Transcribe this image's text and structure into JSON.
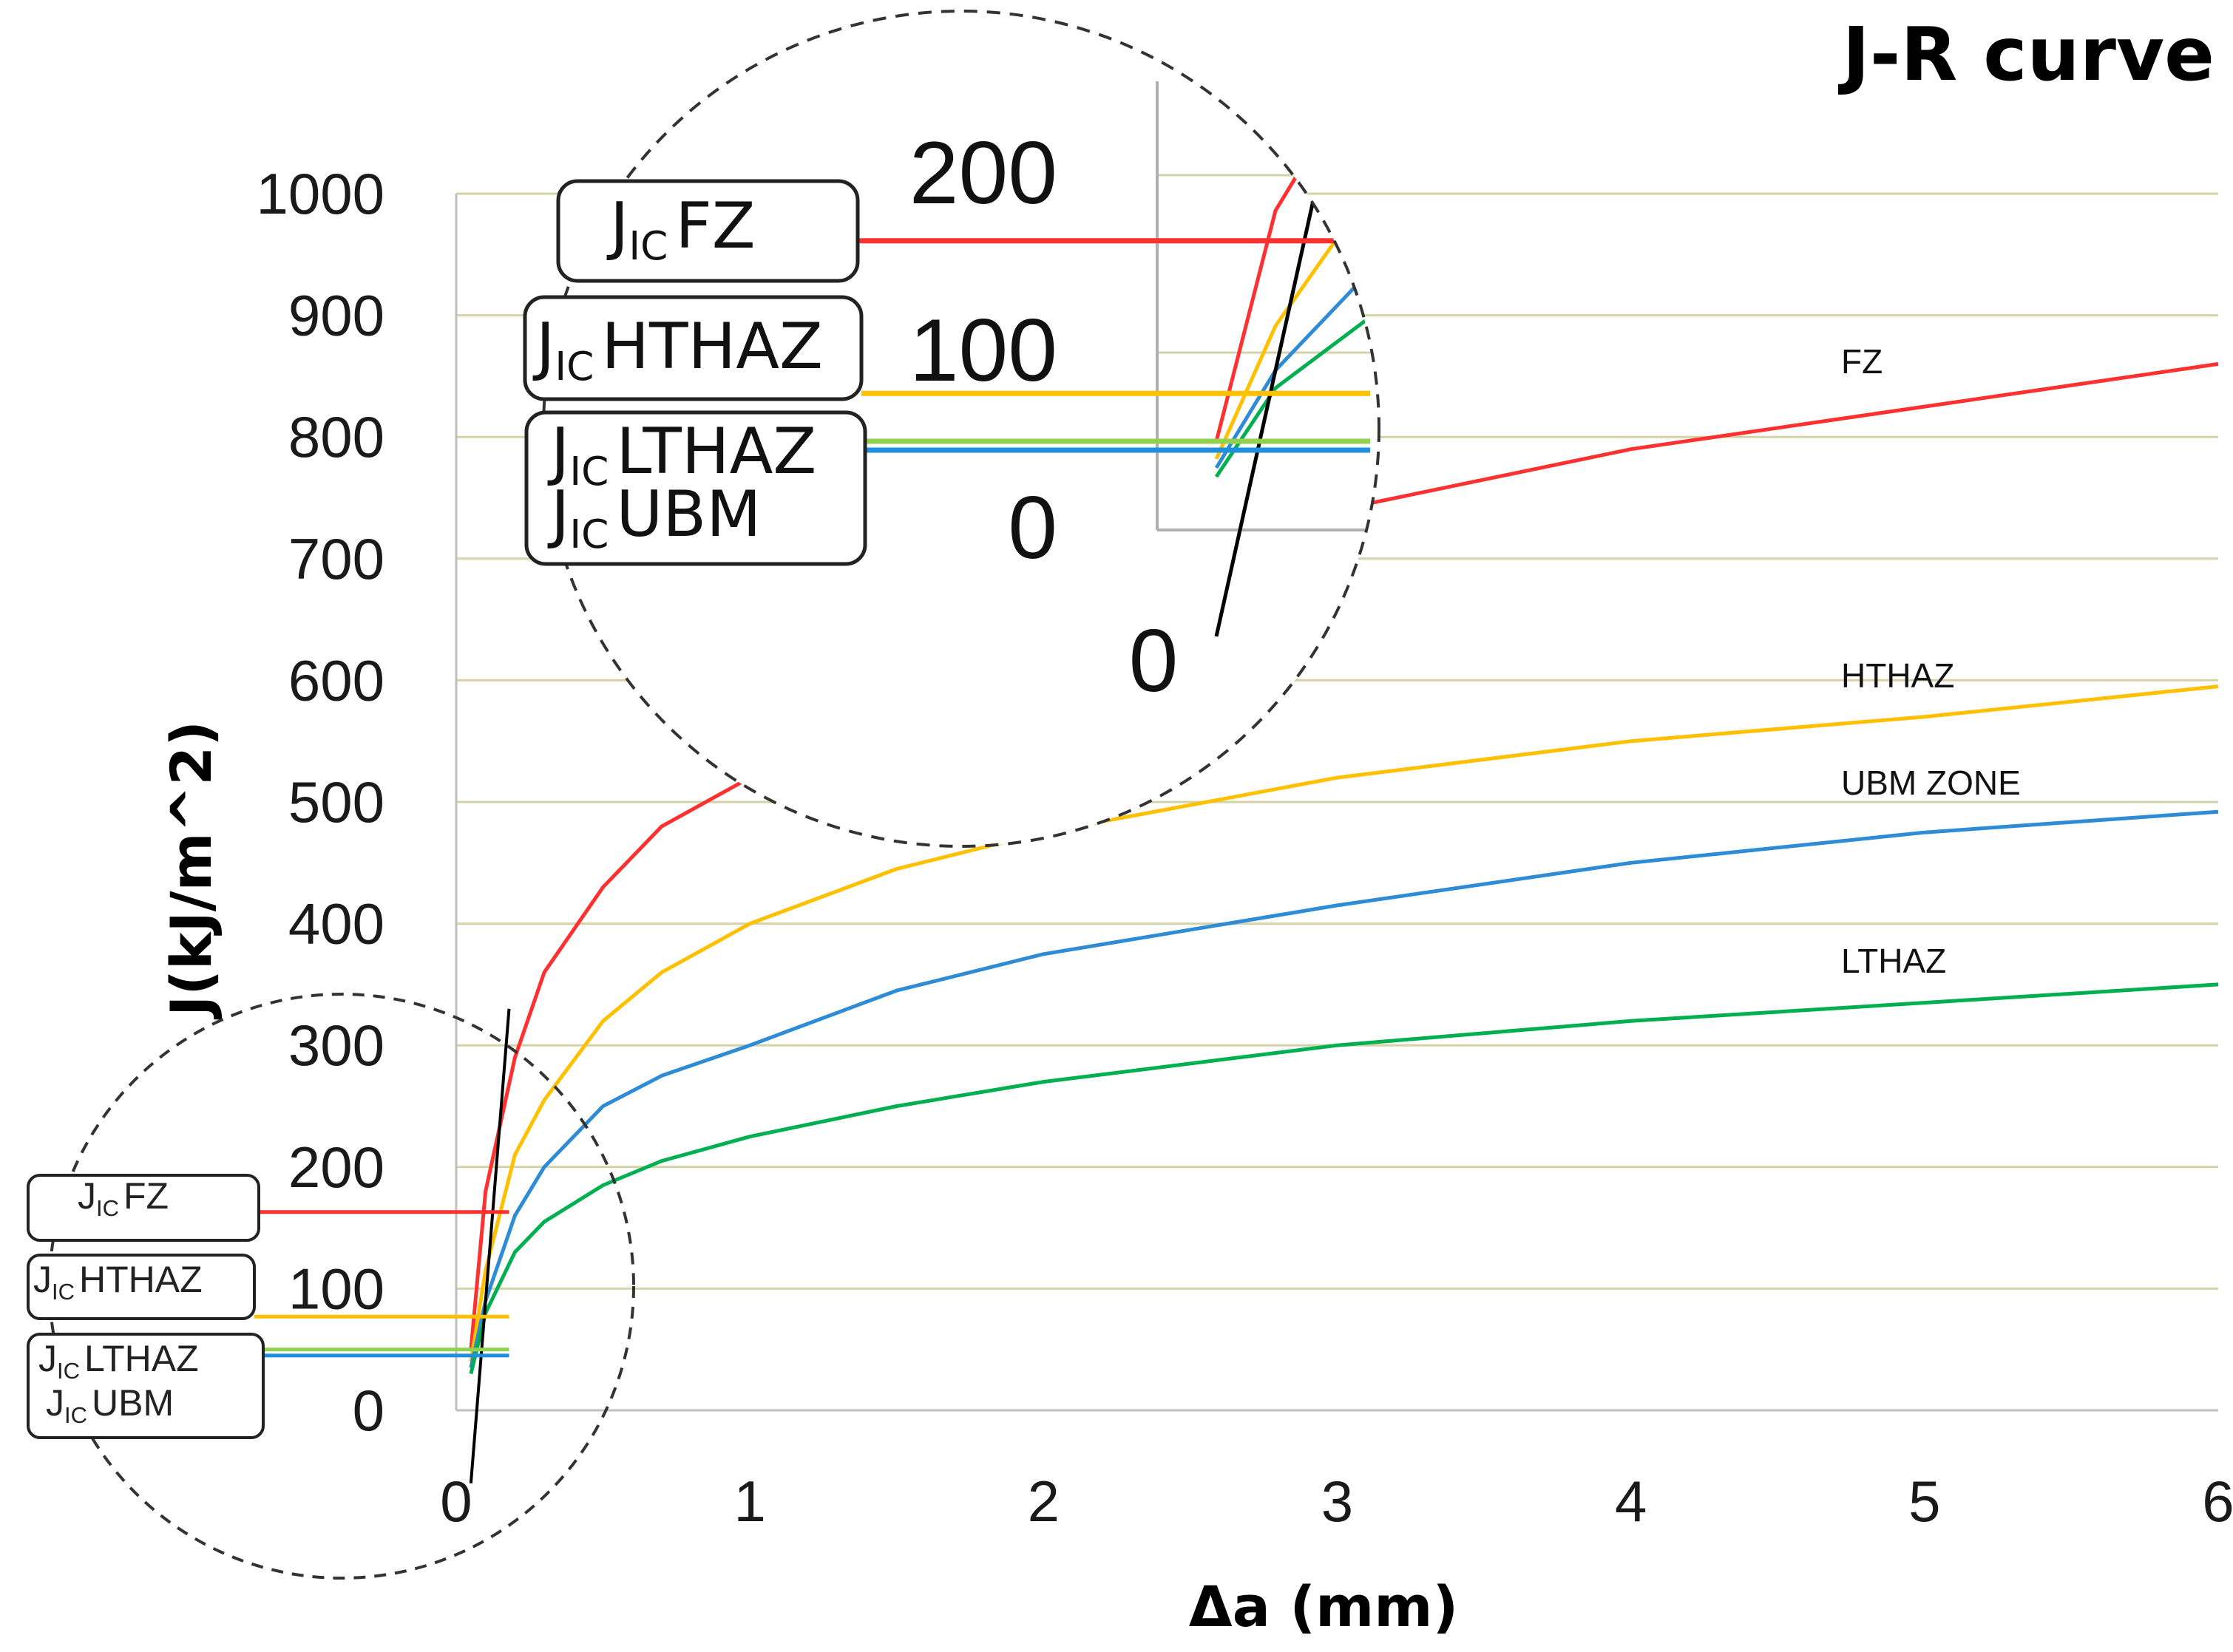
{
  "chart_data": {
    "type": "line",
    "title": "J-R curve",
    "xlabel": "Δa (mm)",
    "ylabel": "J(kJ/m^2)",
    "xlim": [
      0,
      6
    ],
    "ylim": [
      0,
      1000
    ],
    "x_ticks": [
      "0",
      "1",
      "2",
      "3",
      "4",
      "5",
      "6"
    ],
    "y_ticks": [
      "0",
      "100",
      "200",
      "300",
      "400",
      "500",
      "600",
      "700",
      "800",
      "900",
      "1000"
    ],
    "grid": "horizontal",
    "colors": {
      "FZ": "#ff3030",
      "HTHAZ": "#ffc000",
      "UBM": "#2e8bd6",
      "LTHAZ": "#00b050",
      "blunting": "#000000",
      "grid": "#d6d2a8",
      "axis": "#bfbfbf"
    },
    "series": [
      {
        "name": "FZ",
        "color": "#ff3030",
        "x": [
          0.05,
          0.1,
          0.2,
          0.3,
          0.5,
          0.7,
          1.0,
          1.5,
          2.0,
          3.0,
          4.0,
          5.0,
          6.0
        ],
        "y": [
          50,
          180,
          290,
          360,
          430,
          480,
          520,
          575,
          630,
          740,
          790,
          825,
          860
        ]
      },
      {
        "name": "HTHAZ",
        "color": "#ffc000",
        "x": [
          0.05,
          0.1,
          0.2,
          0.3,
          0.5,
          0.7,
          1.0,
          1.5,
          2.0,
          3.0,
          4.0,
          5.0,
          6.0
        ],
        "y": [
          40,
          115,
          210,
          255,
          320,
          360,
          400,
          445,
          475,
          520,
          550,
          570,
          595
        ]
      },
      {
        "name": "UBM ZONE",
        "color": "#2e8bd6",
        "x": [
          0.05,
          0.1,
          0.2,
          0.3,
          0.5,
          0.7,
          1.0,
          1.5,
          2.0,
          3.0,
          4.0,
          5.0,
          6.0
        ],
        "y": [
          35,
          90,
          160,
          200,
          250,
          275,
          300,
          345,
          375,
          415,
          450,
          475,
          492
        ]
      },
      {
        "name": "LTHAZ",
        "color": "#00b050",
        "x": [
          0.05,
          0.1,
          0.2,
          0.3,
          0.5,
          0.7,
          1.0,
          1.5,
          2.0,
          3.0,
          4.0,
          5.0,
          6.0
        ],
        "y": [
          30,
          80,
          130,
          155,
          185,
          205,
          225,
          250,
          270,
          300,
          320,
          335,
          350
        ]
      }
    ],
    "blunting_line": {
      "x": [
        0.05,
        0.18
      ],
      "y": [
        -60,
        330
      ]
    },
    "jic_markers": [
      {
        "label_main": "J",
        "label_sub": "IC",
        "label_rest": "FZ",
        "value": 163,
        "color": "#ff3030"
      },
      {
        "label_main": "J",
        "label_sub": "IC",
        "label_rest": "HTHAZ",
        "value": 77,
        "color": "#ffc000"
      },
      {
        "label_main": "J",
        "label_sub": "IC",
        "label_rest": "LTHAZ",
        "value": 50,
        "color": "#92d050"
      },
      {
        "label_main": "J",
        "label_sub": "IC",
        "label_rest": "UBM",
        "value": 45,
        "color": "#1f8fe0"
      }
    ],
    "zoom_inset": {
      "y_ticks": [
        "200",
        "100",
        "0"
      ],
      "x_tick": "0"
    }
  }
}
